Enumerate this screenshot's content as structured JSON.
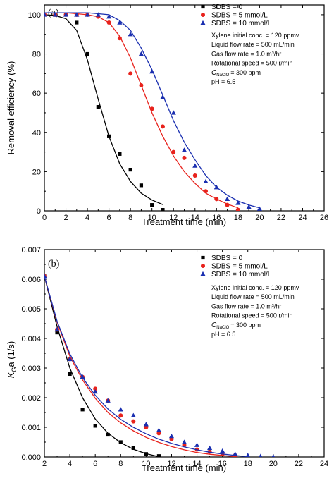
{
  "chart_data": [
    {
      "type": "scatter",
      "panel_label": "(a)",
      "xlabel": "Treatment time (min)",
      "ylabel": "Removal efficiency (%)",
      "xlim": [
        0,
        26
      ],
      "ylim": [
        0,
        105
      ],
      "x_ticks": [
        0,
        2,
        4,
        6,
        8,
        10,
        12,
        14,
        16,
        18,
        20,
        22,
        24,
        26
      ],
      "y_ticks": [
        0,
        20,
        40,
        60,
        80,
        100
      ],
      "x_tick_labels": [
        "0",
        "2",
        "4",
        "6",
        "8",
        "10",
        "12",
        "14",
        "16",
        "18",
        "20",
        "22",
        "24",
        "26"
      ],
      "y_tick_labels": [
        "0",
        "20",
        "40",
        "60",
        "80",
        "100"
      ],
      "legend_position": "top-right",
      "series": [
        {
          "name": "SDBS = 0",
          "marker": "square",
          "color": "#000000",
          "points": [
            [
              0,
              100
            ],
            [
              1,
              100
            ],
            [
              2,
              100
            ],
            [
              3,
              96
            ],
            [
              4,
              80
            ],
            [
              5,
              53
            ],
            [
              6,
              38
            ],
            [
              7,
              29
            ],
            [
              8,
              21
            ],
            [
              9,
              13
            ],
            [
              10,
              3
            ],
            [
              11,
              0.5
            ]
          ],
          "fit": [
            [
              0,
              100
            ],
            [
              1,
              99.6
            ],
            [
              2,
              98
            ],
            [
              3,
              92
            ],
            [
              4,
              77
            ],
            [
              5,
              57
            ],
            [
              6,
              38
            ],
            [
              7,
              24
            ],
            [
              8,
              15
            ],
            [
              9,
              9
            ],
            [
              10,
              5.5
            ],
            [
              11,
              3.2
            ]
          ]
        },
        {
          "name": "SDBS = 5 mmol/L",
          "marker": "circle",
          "color": "#e8221c",
          "points": [
            [
              0,
              100
            ],
            [
              1,
              100
            ],
            [
              2,
              100
            ],
            [
              3,
              100
            ],
            [
              4,
              100
            ],
            [
              5,
              99
            ],
            [
              6,
              96
            ],
            [
              7,
              88
            ],
            [
              8,
              70
            ],
            [
              9,
              64
            ],
            [
              10,
              52
            ],
            [
              11,
              43
            ],
            [
              12,
              30
            ],
            [
              13,
              27
            ],
            [
              14,
              18
            ],
            [
              15,
              10
            ],
            [
              16,
              6
            ],
            [
              17,
              3
            ],
            [
              18,
              0.5
            ]
          ],
          "fit": [
            [
              0,
              101
            ],
            [
              2,
              101
            ],
            [
              4,
              100
            ],
            [
              5,
              99
            ],
            [
              6,
              96
            ],
            [
              7,
              89
            ],
            [
              8,
              78
            ],
            [
              9,
              64
            ],
            [
              10,
              50
            ],
            [
              11,
              38
            ],
            [
              12,
              28
            ],
            [
              13,
              20
            ],
            [
              14,
              14
            ],
            [
              15,
              9
            ],
            [
              16,
              6
            ],
            [
              17,
              3.5
            ],
            [
              18,
              1.5
            ]
          ]
        },
        {
          "name": "SDBS = 10 mmol/L",
          "marker": "triangle",
          "color": "#1a2fb0",
          "points": [
            [
              0,
              100
            ],
            [
              1,
              100
            ],
            [
              2,
              100
            ],
            [
              3,
              100
            ],
            [
              4,
              100
            ],
            [
              5,
              100
            ],
            [
              6,
              99
            ],
            [
              7,
              96
            ],
            [
              8,
              90
            ],
            [
              9,
              80
            ],
            [
              10,
              71
            ],
            [
              11,
              58
            ],
            [
              12,
              50
            ],
            [
              13,
              31
            ],
            [
              14,
              23
            ],
            [
              15,
              15
            ],
            [
              16,
              12
            ],
            [
              17,
              6
            ],
            [
              18,
              4
            ],
            [
              19,
              2
            ],
            [
              20,
              1
            ]
          ],
          "fit": [
            [
              0,
              101
            ],
            [
              2,
              101
            ],
            [
              4,
              101
            ],
            [
              6,
              100
            ],
            [
              7,
              97
            ],
            [
              8,
              92
            ],
            [
              9,
              83
            ],
            [
              10,
              72
            ],
            [
              11,
              59
            ],
            [
              12,
              46
            ],
            [
              13,
              35
            ],
            [
              14,
              26
            ],
            [
              15,
              18
            ],
            [
              16,
              12
            ],
            [
              17,
              8
            ],
            [
              18,
              5
            ],
            [
              19,
              3
            ],
            [
              20,
              1.5
            ]
          ]
        }
      ],
      "conditions": [
        "Xylene initial conc. = 120 ppmv",
        "Liquid flow rate = 500 mL/min",
        "Gas flow rate = 1.0 m³/hr",
        "Rotational speed = 500 r/min",
        "C",
        "= 300 ppm",
        "pH = 6.5"
      ],
      "conditions_sub": "NaClO"
    },
    {
      "type": "scatter",
      "panel_label": "(b)",
      "xlabel": "Treatment time (min)",
      "ylabel": "K",
      "ylabel_sub": "G",
      "ylabel_rest": "a (1/s)",
      "xlim": [
        2,
        24
      ],
      "ylim": [
        0,
        0.007
      ],
      "x_ticks": [
        2,
        4,
        6,
        8,
        10,
        12,
        14,
        16,
        18,
        20,
        22,
        24
      ],
      "y_ticks": [
        0,
        0.001,
        0.002,
        0.003,
        0.004,
        0.005,
        0.006,
        0.007
      ],
      "x_tick_labels": [
        "2",
        "4",
        "6",
        "8",
        "10",
        "12",
        "14",
        "16",
        "18",
        "20",
        "22",
        "24"
      ],
      "y_tick_labels": [
        "0.000",
        "0.001",
        "0.002",
        "0.003",
        "0.004",
        "0.005",
        "0.006",
        "0.007"
      ],
      "legend_position": "top-right",
      "series": [
        {
          "name": "SDBS = 0",
          "marker": "square",
          "color": "#000000",
          "points": [
            [
              2,
              0.0061
            ],
            [
              3,
              0.0042
            ],
            [
              4,
              0.0028
            ],
            [
              5,
              0.0016
            ],
            [
              6,
              0.00105
            ],
            [
              7,
              0.00075
            ],
            [
              8,
              0.0005
            ],
            [
              9,
              0.0003
            ],
            [
              10,
              0.0001
            ],
            [
              11,
              3e-05
            ]
          ],
          "fit": [
            [
              2,
              0.0061
            ],
            [
              3,
              0.0044
            ],
            [
              4,
              0.003
            ],
            [
              5,
              0.002
            ],
            [
              6,
              0.00128
            ],
            [
              7,
              0.0008
            ],
            [
              8,
              0.00048
            ],
            [
              9,
              0.00026
            ],
            [
              10,
              0.00011
            ],
            [
              11,
              1e-05
            ]
          ]
        },
        {
          "name": "SDBS = 5 mmol/L",
          "marker": "circle",
          "color": "#e8221c",
          "points": [
            [
              2,
              0.0061
            ],
            [
              3,
              0.0043
            ],
            [
              4,
              0.0033
            ],
            [
              5,
              0.0027
            ],
            [
              6,
              0.0023
            ],
            [
              7,
              0.0019
            ],
            [
              8,
              0.0014
            ],
            [
              9,
              0.0012
            ],
            [
              10,
              0.001
            ],
            [
              11,
              0.0008
            ],
            [
              12,
              0.0006
            ],
            [
              13,
              0.0004
            ],
            [
              14,
              0.00025
            ],
            [
              15,
              0.00018
            ],
            [
              16,
              0.0001
            ],
            [
              17,
              5e-05
            ]
          ],
          "fit": [
            [
              2,
              0.0061
            ],
            [
              3,
              0.00455
            ],
            [
              4,
              0.0034
            ],
            [
              5,
              0.0026
            ],
            [
              6,
              0.00198
            ],
            [
              7,
              0.0015
            ],
            [
              8,
              0.00115
            ],
            [
              9,
              0.00088
            ],
            [
              10,
              0.00066
            ],
            [
              11,
              0.00049
            ],
            [
              12,
              0.00035
            ],
            [
              13,
              0.00024
            ],
            [
              14,
              0.00015
            ],
            [
              15,
              9e-05
            ],
            [
              16,
              5e-05
            ],
            [
              17,
              1e-05
            ]
          ]
        },
        {
          "name": "SDBS = 10 mmol/L",
          "marker": "triangle",
          "color": "#1a2fb0",
          "points": [
            [
              2,
              0.0061
            ],
            [
              3,
              0.0043
            ],
            [
              4,
              0.0033
            ],
            [
              5,
              0.0027
            ],
            [
              6,
              0.0022
            ],
            [
              7,
              0.0019
            ],
            [
              8,
              0.0016
            ],
            [
              9,
              0.0014
            ],
            [
              10,
              0.0011
            ],
            [
              11,
              0.0009
            ],
            [
              12,
              0.0007
            ],
            [
              13,
              0.0005
            ],
            [
              14,
              0.0004
            ],
            [
              15,
              0.0003
            ],
            [
              16,
              0.0002
            ],
            [
              17,
              0.0001
            ],
            [
              18,
              5e-05
            ],
            [
              19,
              2e-05
            ],
            [
              20,
              1e-05
            ]
          ],
          "fit": [
            [
              2,
              0.0061
            ],
            [
              3,
              0.00458
            ],
            [
              4,
              0.00348
            ],
            [
              5,
              0.00268
            ],
            [
              6,
              0.00208
            ],
            [
              7,
              0.00162
            ],
            [
              8,
              0.00127
            ],
            [
              9,
              0.001
            ],
            [
              10,
              0.00078
            ],
            [
              11,
              0.0006
            ],
            [
              12,
              0.00046
            ],
            [
              13,
              0.00034
            ],
            [
              14,
              0.00024
            ],
            [
              15,
              0.00016
            ],
            [
              16,
              0.0001
            ],
            [
              17,
              5e-05
            ],
            [
              18,
              1e-05
            ]
          ]
        }
      ],
      "conditions": [
        "Xylene initial conc. = 120 ppmv",
        "Liquid flow rate = 500 mL/min",
        "Gas flow rate = 1.0 m³/hr",
        "Rotational speed = 500 r/min",
        "C",
        "= 300 ppm",
        "pH = 6.5"
      ],
      "conditions_sub": "NaClO"
    }
  ]
}
